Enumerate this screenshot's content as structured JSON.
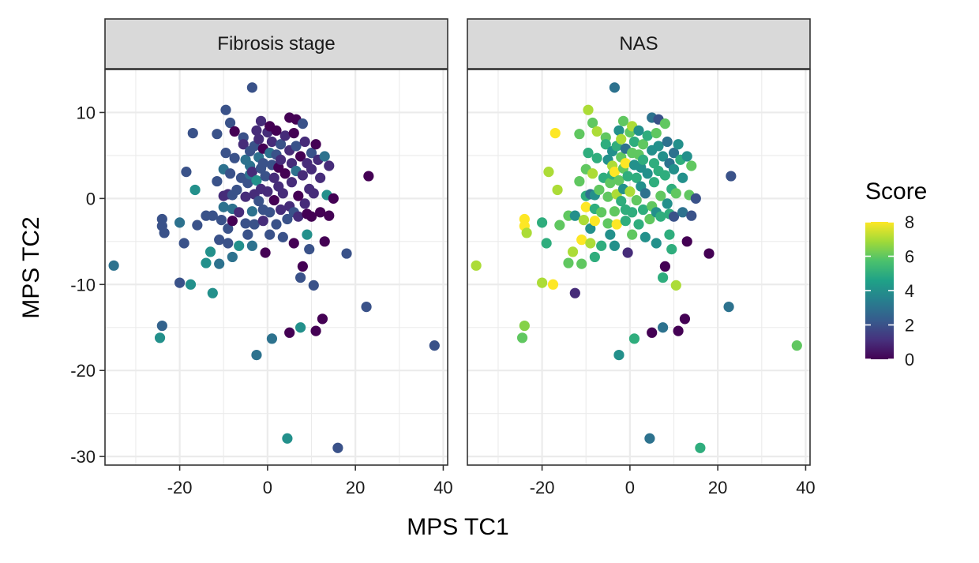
{
  "chart_data": {
    "type": "scatter",
    "xlabel": "MPS TC1",
    "ylabel": "MPS TC2",
    "xlim": [
      -37,
      41
    ],
    "ylim": [
      -31,
      15
    ],
    "x_ticks": [
      -20,
      0,
      20,
      40
    ],
    "x_tick_labels": [
      "-20",
      "0",
      "20",
      "40"
    ],
    "y_ticks": [
      -30,
      -20,
      -10,
      0,
      10
    ],
    "y_tick_labels": [
      "-30",
      "-20",
      "-10",
      "0",
      "10"
    ],
    "grid": true,
    "legend": {
      "title": "Score",
      "placement": "right",
      "type": "colorbar",
      "range": [
        0,
        8
      ],
      "ticks": [
        0,
        2,
        4,
        6,
        8
      ],
      "tick_labels": [
        "0",
        "2",
        "4",
        "6",
        "8"
      ],
      "colors": [
        "#440154",
        "#46327e",
        "#365c8d",
        "#277f8e",
        "#1fa187",
        "#4ac16d",
        "#a0da39",
        "#fde725"
      ]
    },
    "panels": [
      {
        "name": "Fibrosis stage"
      },
      {
        "name": "NAS"
      }
    ],
    "points": [
      {
        "x": -35,
        "y": -7.8,
        "fib": 3,
        "nas": 7
      },
      {
        "x": -24,
        "y": -14.8,
        "fib": 2.5,
        "nas": 6.5
      },
      {
        "x": -24.5,
        "y": -16.2,
        "fib": 4,
        "nas": 6
      },
      {
        "x": -24,
        "y": -2.4,
        "fib": 2,
        "nas": 8
      },
      {
        "x": -24,
        "y": -3.2,
        "fib": 2,
        "nas": 8
      },
      {
        "x": -23.5,
        "y": -4,
        "fib": 2,
        "nas": 7
      },
      {
        "x": -20,
        "y": -2.8,
        "fib": 3,
        "nas": 5
      },
      {
        "x": -20,
        "y": -9.8,
        "fib": 2,
        "nas": 7
      },
      {
        "x": -19,
        "y": -5.2,
        "fib": 2,
        "nas": 5
      },
      {
        "x": -18.5,
        "y": 3.1,
        "fib": 2,
        "nas": 7
      },
      {
        "x": -17.5,
        "y": -10,
        "fib": 4,
        "nas": 8
      },
      {
        "x": -17,
        "y": 7.6,
        "fib": 2,
        "nas": 8
      },
      {
        "x": -16.5,
        "y": 1,
        "fib": 4,
        "nas": 7
      },
      {
        "x": -16,
        "y": -3.1,
        "fib": 2,
        "nas": 6
      },
      {
        "x": -14,
        "y": -2,
        "fib": 2,
        "nas": 6
      },
      {
        "x": -14,
        "y": -7.5,
        "fib": 4,
        "nas": 6
      },
      {
        "x": -13,
        "y": -6.2,
        "fib": 4,
        "nas": 7
      },
      {
        "x": -12.5,
        "y": -2,
        "fib": 2,
        "nas": 4
      },
      {
        "x": -12.5,
        "y": -11,
        "fib": 4,
        "nas": 1
      },
      {
        "x": -11.5,
        "y": 2,
        "fib": 2,
        "nas": 6
      },
      {
        "x": -11.5,
        "y": 7.5,
        "fib": 2,
        "nas": 6
      },
      {
        "x": -11,
        "y": -4.8,
        "fib": 2,
        "nas": 8
      },
      {
        "x": -11,
        "y": -7.6,
        "fib": 3,
        "nas": 6
      },
      {
        "x": -10.5,
        "y": -2.5,
        "fib": 2,
        "nas": 7
      },
      {
        "x": -10,
        "y": -1,
        "fib": 3,
        "nas": 8
      },
      {
        "x": -10,
        "y": 0.3,
        "fib": 1,
        "nas": 5
      },
      {
        "x": -10,
        "y": 3.4,
        "fib": 3,
        "nas": 6
      },
      {
        "x": -9.5,
        "y": 5.3,
        "fib": 2,
        "nas": 5
      },
      {
        "x": -9.5,
        "y": 10.3,
        "fib": 2,
        "nas": 7
      },
      {
        "x": -9,
        "y": -3.5,
        "fib": 2,
        "nas": 4
      },
      {
        "x": -9,
        "y": 0.5,
        "fib": 1,
        "nas": 3
      },
      {
        "x": -9,
        "y": -5.2,
        "fib": 2,
        "nas": 7
      },
      {
        "x": -8.5,
        "y": 8.8,
        "fib": 2,
        "nas": 6
      },
      {
        "x": -8.5,
        "y": 2.9,
        "fib": 2,
        "nas": 7
      },
      {
        "x": -8,
        "y": 0.4,
        "fib": 2,
        "nas": 4
      },
      {
        "x": -8,
        "y": -1.2,
        "fib": 3,
        "nas": 5
      },
      {
        "x": -8,
        "y": -2.6,
        "fib": 0,
        "nas": 8
      },
      {
        "x": -8,
        "y": -6.8,
        "fib": 3,
        "nas": 5
      },
      {
        "x": -7.5,
        "y": 7.8,
        "fib": 0,
        "nas": 7
      },
      {
        "x": -7.5,
        "y": 4.7,
        "fib": 2,
        "nas": 5
      },
      {
        "x": -7,
        "y": 1,
        "fib": 2,
        "nas": 6
      },
      {
        "x": -6.5,
        "y": -5.5,
        "fib": 4,
        "nas": 5
      },
      {
        "x": -6.5,
        "y": -1.6,
        "fib": 1,
        "nas": 6
      },
      {
        "x": -6,
        "y": 2.4,
        "fib": 2,
        "nas": 5
      },
      {
        "x": -5.5,
        "y": 7.1,
        "fib": 2,
        "nas": 6
      },
      {
        "x": -5.5,
        "y": 6.3,
        "fib": 1,
        "nas": 5
      },
      {
        "x": -5,
        "y": 4.5,
        "fib": 3,
        "nas": 4
      },
      {
        "x": -5,
        "y": 0.2,
        "fib": 1,
        "nas": 6
      },
      {
        "x": -5,
        "y": -2.9,
        "fib": 2,
        "nas": 6
      },
      {
        "x": -4.5,
        "y": -4.2,
        "fib": 2,
        "nas": 4
      },
      {
        "x": -4.5,
        "y": 1.8,
        "fib": 2,
        "nas": 6
      },
      {
        "x": -4,
        "y": 2.8,
        "fib": 3,
        "nas": 5
      },
      {
        "x": -4,
        "y": 5.5,
        "fib": 2,
        "nas": 4
      },
      {
        "x": -4,
        "y": 3.8,
        "fib": 3,
        "nas": 7
      },
      {
        "x": -3.5,
        "y": 12.9,
        "fib": 2,
        "nas": 3
      },
      {
        "x": -3.5,
        "y": -1.5,
        "fib": 3,
        "nas": 6
      },
      {
        "x": -3.5,
        "y": -5.5,
        "fib": 3,
        "nas": 4
      },
      {
        "x": -3.5,
        "y": 3.1,
        "fib": 1,
        "nas": 8
      },
      {
        "x": -3,
        "y": 6.1,
        "fib": 2,
        "nas": 5
      },
      {
        "x": -3,
        "y": 0.5,
        "fib": 1,
        "nas": 7
      },
      {
        "x": -3,
        "y": -3,
        "fib": 2,
        "nas": 8
      },
      {
        "x": -2.5,
        "y": 7.9,
        "fib": 1,
        "nas": 4
      },
      {
        "x": -2.5,
        "y": 2.1,
        "fib": 4,
        "nas": 6
      },
      {
        "x": -2.5,
        "y": -18.2,
        "fib": 3,
        "nas": 4
      },
      {
        "x": -2,
        "y": 4.8,
        "fib": 3,
        "nas": 6
      },
      {
        "x": -2,
        "y": 6.9,
        "fib": 1,
        "nas": 7
      },
      {
        "x": -2,
        "y": -0.3,
        "fib": 2,
        "nas": 5
      },
      {
        "x": -1.5,
        "y": 3.5,
        "fib": 2,
        "nas": 6
      },
      {
        "x": -1.5,
        "y": 9,
        "fib": 1,
        "nas": 6
      },
      {
        "x": -1.5,
        "y": 1.1,
        "fib": 1,
        "nas": 4
      },
      {
        "x": -1,
        "y": -1.3,
        "fib": 2,
        "nas": 5
      },
      {
        "x": -1,
        "y": 5.8,
        "fib": 0,
        "nas": 3
      },
      {
        "x": -1,
        "y": 4.1,
        "fib": 2,
        "nas": 8
      },
      {
        "x": -1,
        "y": -2.6,
        "fib": 1,
        "nas": 5
      },
      {
        "x": -0.5,
        "y": 2.6,
        "fib": 2,
        "nas": 5
      },
      {
        "x": -0.5,
        "y": -6.3,
        "fib": 0,
        "nas": 1
      },
      {
        "x": 0,
        "y": 7.7,
        "fib": 1,
        "nas": 6
      },
      {
        "x": 0,
        "y": 0.8,
        "fib": 1,
        "nas": 7
      },
      {
        "x": 0.5,
        "y": 5.3,
        "fib": 3,
        "nas": 6
      },
      {
        "x": 0.5,
        "y": 8.4,
        "fib": 0,
        "nas": 7
      },
      {
        "x": 0.5,
        "y": -1.6,
        "fib": 2,
        "nas": 5
      },
      {
        "x": 0.5,
        "y": -4.2,
        "fib": 2,
        "nas": 6
      },
      {
        "x": 1,
        "y": 6.6,
        "fib": 1,
        "nas": 5
      },
      {
        "x": 1,
        "y": 3.9,
        "fib": 2,
        "nas": 4
      },
      {
        "x": 1,
        "y": -16.3,
        "fib": 3,
        "nas": 5
      },
      {
        "x": 1.5,
        "y": -0.2,
        "fib": 0,
        "nas": 6
      },
      {
        "x": 1.5,
        "y": 2.4,
        "fib": 1,
        "nas": 5
      },
      {
        "x": 2,
        "y": 7.9,
        "fib": 0,
        "nas": 4
      },
      {
        "x": 2,
        "y": -3,
        "fib": 2,
        "nas": 5
      },
      {
        "x": 2,
        "y": 5.1,
        "fib": 2,
        "nas": 6
      },
      {
        "x": 2.5,
        "y": 3.6,
        "fib": 0,
        "nas": 4
      },
      {
        "x": 2.5,
        "y": 1.4,
        "fib": 1,
        "nas": 4
      },
      {
        "x": 3,
        "y": -1.3,
        "fib": 1,
        "nas": 5
      },
      {
        "x": 3,
        "y": 6.3,
        "fib": 2,
        "nas": 6
      },
      {
        "x": 3,
        "y": 4.5,
        "fib": 1,
        "nas": 5
      },
      {
        "x": 3.5,
        "y": 0.6,
        "fib": 1,
        "nas": 3
      },
      {
        "x": 3.5,
        "y": -4.5,
        "fib": 2,
        "nas": 4
      },
      {
        "x": 4,
        "y": 2.9,
        "fib": 0,
        "nas": 4
      },
      {
        "x": 4,
        "y": 7.3,
        "fib": 1,
        "nas": 5
      },
      {
        "x": 4.5,
        "y": -2.4,
        "fib": 2,
        "nas": 6
      },
      {
        "x": 4.5,
        "y": -27.9,
        "fib": 4,
        "nas": 3
      },
      {
        "x": 5,
        "y": 9.4,
        "fib": 0,
        "nas": 3
      },
      {
        "x": 5,
        "y": 5.6,
        "fib": 1,
        "nas": 4
      },
      {
        "x": 5,
        "y": -0.9,
        "fib": 1,
        "nas": 6
      },
      {
        "x": 5,
        "y": -15.6,
        "fib": 0,
        "nas": 0
      },
      {
        "x": 5.5,
        "y": 4.1,
        "fib": 1,
        "nas": 5
      },
      {
        "x": 5.5,
        "y": 1.9,
        "fib": 1,
        "nas": 5
      },
      {
        "x": 6,
        "y": 7.6,
        "fib": 0,
        "nas": 6
      },
      {
        "x": 6,
        "y": -5.2,
        "fib": 0,
        "nas": 4
      },
      {
        "x": 6,
        "y": -1.6,
        "fib": 2,
        "nas": 4
      },
      {
        "x": 6.5,
        "y": 3.2,
        "fib": 3,
        "nas": 5
      },
      {
        "x": 6.5,
        "y": 6.1,
        "fib": 2,
        "nas": 4
      },
      {
        "x": 6.5,
        "y": 9.2,
        "fib": 0,
        "nas": 2
      },
      {
        "x": 7,
        "y": 0.3,
        "fib": 0,
        "nas": 6
      },
      {
        "x": 7,
        "y": -2.1,
        "fib": 1,
        "nas": 5
      },
      {
        "x": 7.5,
        "y": 4.9,
        "fib": 0,
        "nas": 4
      },
      {
        "x": 7.5,
        "y": -15,
        "fib": 4,
        "nas": 3
      },
      {
        "x": 7.5,
        "y": -9.2,
        "fib": 2,
        "nas": 5
      },
      {
        "x": 8,
        "y": 8.7,
        "fib": 2,
        "nas": 6
      },
      {
        "x": 8,
        "y": 2.7,
        "fib": 1,
        "nas": 5
      },
      {
        "x": 8,
        "y": -7.9,
        "fib": 0,
        "nas": 0
      },
      {
        "x": 8.5,
        "y": -0.6,
        "fib": 1,
        "nas": 4
      },
      {
        "x": 8.5,
        "y": 6.6,
        "fib": 1,
        "nas": 3
      },
      {
        "x": 9,
        "y": 4.1,
        "fib": 1,
        "nas": 3
      },
      {
        "x": 9,
        "y": -1.8,
        "fib": 0,
        "nas": 5
      },
      {
        "x": 9,
        "y": -4.2,
        "fib": 4,
        "nas": 5
      },
      {
        "x": 9.5,
        "y": 1.1,
        "fib": 1,
        "nas": 5
      },
      {
        "x": 9.5,
        "y": -5.9,
        "fib": 2,
        "nas": 5
      },
      {
        "x": 10,
        "y": 5.3,
        "fib": 2,
        "nas": 3
      },
      {
        "x": 10,
        "y": 3.4,
        "fib": 1,
        "nas": 4
      },
      {
        "x": 10,
        "y": -2.1,
        "fib": 0,
        "nas": 2
      },
      {
        "x": 10.5,
        "y": -10.1,
        "fib": 2,
        "nas": 7
      },
      {
        "x": 10.5,
        "y": 0.6,
        "fib": 1,
        "nas": 6
      },
      {
        "x": 11,
        "y": 6.3,
        "fib": 0,
        "nas": 4
      },
      {
        "x": 11,
        "y": -15.4,
        "fib": 0,
        "nas": 0
      },
      {
        "x": 11.5,
        "y": 4.5,
        "fib": 1,
        "nas": 5
      },
      {
        "x": 12,
        "y": 2.4,
        "fib": 1,
        "nas": 4
      },
      {
        "x": 12,
        "y": -1.6,
        "fib": 0,
        "nas": 3
      },
      {
        "x": 12.5,
        "y": -14,
        "fib": 0,
        "nas": 0
      },
      {
        "x": 13,
        "y": 4.9,
        "fib": 3,
        "nas": 4
      },
      {
        "x": 13,
        "y": -5,
        "fib": 0,
        "nas": 0
      },
      {
        "x": 13.5,
        "y": 0.4,
        "fib": 4,
        "nas": 6
      },
      {
        "x": 14,
        "y": 3.8,
        "fib": 1,
        "nas": 6
      },
      {
        "x": 14,
        "y": -2,
        "fib": 0,
        "nas": 2
      },
      {
        "x": 15,
        "y": 0,
        "fib": 0,
        "nas": 2
      },
      {
        "x": 16,
        "y": -29,
        "fib": 2,
        "nas": 5
      },
      {
        "x": 18,
        "y": -6.4,
        "fib": 2,
        "nas": 0
      },
      {
        "x": 22.5,
        "y": -12.6,
        "fib": 2,
        "nas": 3
      },
      {
        "x": 23,
        "y": 2.6,
        "fib": 0,
        "nas": 2
      },
      {
        "x": 38,
        "y": -17.1,
        "fib": 2,
        "nas": 6
      }
    ]
  }
}
